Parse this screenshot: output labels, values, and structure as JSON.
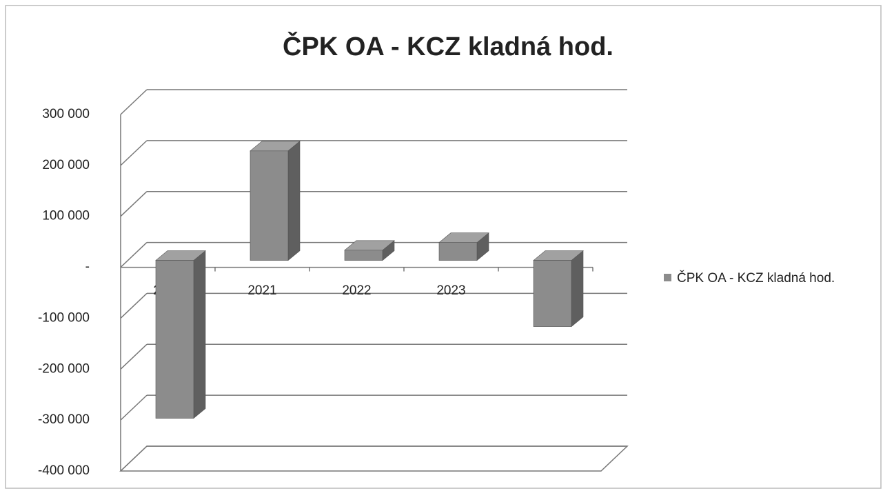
{
  "chart_data": {
    "type": "bar3d",
    "title": "ČPK OA - KCZ kladná  hod.",
    "categories": [
      "2020",
      "2021",
      "2022",
      "2023",
      null
    ],
    "series": [
      {
        "name": "ČPK OA - KCZ kladná  hod.",
        "color": "#8c8c8c",
        "values": [
          -310000,
          215000,
          20000,
          35000,
          -130000
        ]
      }
    ],
    "ylim": [
      -400000,
      300000
    ],
    "yticks": [
      {
        "value": -400000,
        "label": "-400 000"
      },
      {
        "value": -300000,
        "label": "-300 000"
      },
      {
        "value": -200000,
        "label": "-200 000"
      },
      {
        "value": -100000,
        "label": "-100 000"
      },
      {
        "value": 0,
        "label": "-"
      },
      {
        "value": 100000,
        "label": "100 000"
      },
      {
        "value": 200000,
        "label": "200 000"
      },
      {
        "value": 300000,
        "label": "300 000"
      }
    ],
    "grid": true,
    "legend": "right"
  }
}
